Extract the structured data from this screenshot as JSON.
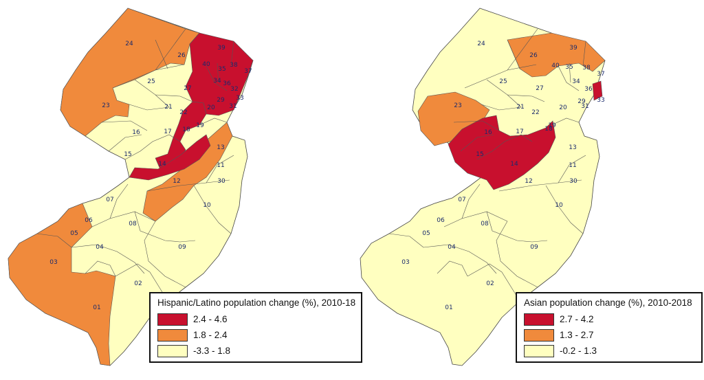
{
  "maps": [
    {
      "id": "hispanic",
      "legend": {
        "title": "Hispanic/Latino population change (%), 2010-18",
        "classes": [
          {
            "label": "2.4 - 4.6",
            "color": "#c8102e"
          },
          {
            "label": "1.8 - 2.4",
            "color": "#f08a3c"
          },
          {
            "label": "-3.3 - 1.8",
            "color": "#ffffc0"
          }
        ]
      },
      "state_class": 2,
      "regions": [
        {
          "class": 1,
          "shape": "south_west"
        },
        {
          "class": 1,
          "shape": "north_west"
        },
        {
          "class": 1,
          "shape": "central_strip"
        },
        {
          "class": 0,
          "shape": "hudson_core"
        },
        {
          "class": 0,
          "shape": "north_core"
        },
        {
          "class": 0,
          "shape": "central_core"
        }
      ],
      "labels": [
        "24",
        "26",
        "39",
        "40",
        "35",
        "38",
        "37",
        "25",
        "27",
        "34",
        "36",
        "32",
        "33",
        "29",
        "31",
        "23",
        "21",
        "20",
        "22",
        "17",
        "18",
        "19",
        "16",
        "15",
        "14",
        "13",
        "11",
        "30",
        "12",
        "10",
        "07",
        "06",
        "05",
        "08",
        "04",
        "09",
        "03",
        "02",
        "01"
      ]
    },
    {
      "id": "asian",
      "legend": {
        "title": "Asian population change (%), 2010-2018",
        "classes": [
          {
            "label": "2.7 - 4.2",
            "color": "#c8102e"
          },
          {
            "label": "1.3 - 2.7",
            "color": "#f08a3c"
          },
          {
            "label": "-0.2 - 1.3",
            "color": "#ffffc0"
          }
        ]
      },
      "state_class": 2,
      "regions": [
        {
          "class": 1,
          "shape": "north_east"
        },
        {
          "class": 1,
          "shape": "mid_west"
        },
        {
          "class": 0,
          "shape": "central_core"
        },
        {
          "class": 0,
          "shape": "hudson_small"
        }
      ],
      "labels": [
        "24",
        "26",
        "39",
        "40",
        "35",
        "38",
        "37",
        "25",
        "27",
        "34",
        "36",
        "33",
        "29",
        "31",
        "23",
        "21",
        "20",
        "22",
        "17",
        "18",
        "19",
        "16",
        "15",
        "14",
        "13",
        "11",
        "30",
        "12",
        "10",
        "07",
        "06",
        "05",
        "08",
        "04",
        "09",
        "03",
        "02",
        "01"
      ]
    }
  ]
}
